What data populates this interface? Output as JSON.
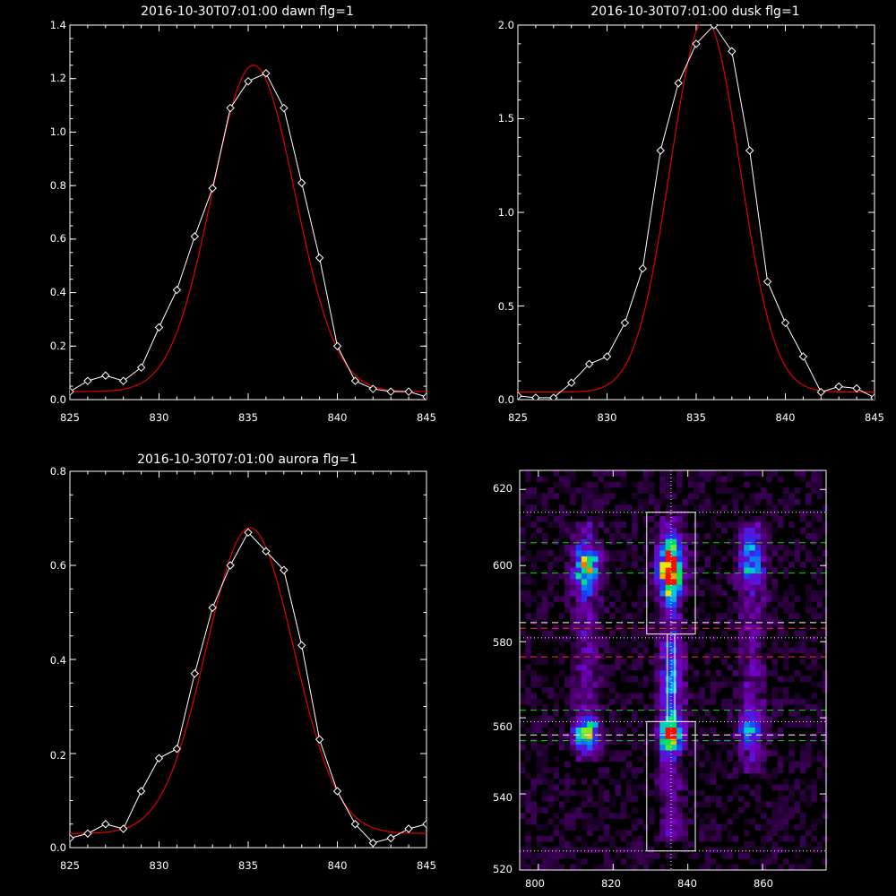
{
  "chart_data": [
    {
      "type": "line",
      "title": "2016-10-30T07:01:00 dawn flg=1",
      "xlabel": "",
      "ylabel": "",
      "xlim": [
        825,
        845
      ],
      "ylim": [
        0,
        1.4
      ],
      "xticks": [
        "825",
        "830",
        "835",
        "840",
        "845"
      ],
      "yticks": [
        "0.0",
        "0.2",
        "0.4",
        "0.6",
        "0.8",
        "1.0",
        "1.2",
        "1.4"
      ],
      "series": [
        {
          "style": "white line with diamond markers",
          "color": "#ffffff",
          "x": [
            825,
            826,
            827,
            828,
            829,
            830,
            831,
            832,
            833,
            834,
            835,
            836,
            837,
            838,
            839,
            840,
            841,
            842,
            843,
            844,
            845
          ],
          "y": [
            0.03,
            0.07,
            0.09,
            0.07,
            0.12,
            0.27,
            0.41,
            0.61,
            0.79,
            1.09,
            1.19,
            1.22,
            1.09,
            0.81,
            0.53,
            0.2,
            0.07,
            0.04,
            0.03,
            0.03,
            0.01
          ]
        },
        {
          "style": "red gaussian fit",
          "color": "#e00000",
          "gaussian": {
            "amplitude": 1.22,
            "center": 835.3,
            "sigma": 2.33,
            "baseline": 0.03
          }
        }
      ]
    },
    {
      "type": "line",
      "title": "2016-10-30T07:01:00 dusk flg=1",
      "xlabel": "",
      "ylabel": "",
      "xlim": [
        825,
        845
      ],
      "ylim": [
        0,
        2.0
      ],
      "xticks": [
        "825",
        "830",
        "835",
        "840",
        "845"
      ],
      "yticks": [
        "0.0",
        "0.5",
        "1.0",
        "1.5",
        "2.0"
      ],
      "series": [
        {
          "style": "white line with diamond markers",
          "color": "#ffffff",
          "x": [
            825,
            826,
            827,
            828,
            829,
            830,
            831,
            832,
            833,
            834,
            835,
            836,
            837,
            838,
            839,
            840,
            841,
            842,
            843,
            844,
            845
          ],
          "y": [
            0.02,
            0.01,
            0.01,
            0.09,
            0.19,
            0.23,
            0.41,
            0.7,
            1.33,
            1.69,
            1.9,
            2.0,
            1.86,
            1.33,
            0.63,
            0.41,
            0.23,
            0.04,
            0.07,
            0.06,
            0.01
          ]
        },
        {
          "style": "red gaussian fit",
          "color": "#e00000",
          "gaussian": {
            "amplitude": 1.99,
            "center": 835.5,
            "sigma": 1.95,
            "baseline": 0.04
          }
        }
      ]
    },
    {
      "type": "line",
      "title": "2016-10-30T07:01:00 aurora flg=1",
      "xlabel": "",
      "ylabel": "",
      "xlim": [
        825,
        845
      ],
      "ylim": [
        0,
        0.8
      ],
      "xticks": [
        "825",
        "830",
        "835",
        "840",
        "845"
      ],
      "yticks": [
        "0.0",
        "0.2",
        "0.4",
        "0.6",
        "0.8"
      ],
      "series": [
        {
          "style": "white line with diamond markers",
          "color": "#ffffff",
          "x": [
            825,
            826,
            827,
            828,
            829,
            830,
            831,
            832,
            833,
            834,
            835,
            836,
            837,
            838,
            839,
            840,
            841,
            842,
            843,
            844,
            845
          ],
          "y": [
            0.02,
            0.03,
            0.05,
            0.04,
            0.12,
            0.19,
            0.21,
            0.37,
            0.51,
            0.6,
            0.67,
            0.63,
            0.59,
            0.43,
            0.23,
            0.12,
            0.05,
            0.01,
            0.02,
            0.04,
            0.05
          ]
        },
        {
          "style": "red gaussian fit",
          "color": "#e00000",
          "gaussian": {
            "amplitude": 0.65,
            "center": 835.1,
            "sigma": 2.45,
            "baseline": 0.03
          }
        }
      ]
    },
    {
      "type": "heatmap",
      "title": "",
      "xlabel": "",
      "ylabel": "",
      "xlim": [
        795,
        877
      ],
      "ylim": [
        520,
        625
      ],
      "xticks": [
        "800",
        "820",
        "840",
        "860"
      ],
      "yticks": [
        "520",
        "540",
        "560",
        "580",
        "600",
        "620"
      ],
      "colormap": "black-purple-blue-cyan-green-yellow-red",
      "emission_lines": [
        {
          "x_center": 813,
          "x_width": 3.5,
          "y_min": 548,
          "y_max": 612,
          "peaks": [
            {
              "y": 599,
              "strength": 0.55,
              "spread": 6
            },
            {
              "y": 556,
              "strength": 0.5,
              "spread": 4
            }
          ]
        },
        {
          "x_center": 835.5,
          "x_width": 3.2,
          "y_min": 527,
          "y_max": 613,
          "peaks": [
            {
              "y": 599,
              "strength": 1.0,
              "spread": 7
            },
            {
              "y": 556,
              "strength": 0.75,
              "spread": 5
            },
            {
              "y": 570,
              "strength": 0.3,
              "spread": 9
            }
          ]
        },
        {
          "x_center": 857,
          "x_width": 3.5,
          "y_min": 545,
          "y_max": 612,
          "peaks": [
            {
              "y": 601,
              "strength": 0.4,
              "spread": 6
            },
            {
              "y": 557,
              "strength": 0.3,
              "spread": 4
            }
          ]
        }
      ],
      "boxes": [
        {
          "color": "#ffffff",
          "x": [
            829,
            842
          ],
          "y": [
            582,
            614
          ]
        },
        {
          "color": "#ffffff",
          "x": [
            829,
            842
          ],
          "y": [
            525,
            559
          ]
        },
        {
          "color": "#ffffff",
          "x": [
            834.5,
            836.5
          ],
          "y": [
            559,
            582
          ]
        }
      ],
      "vertical_dotted_line": {
        "color": "#ffffff",
        "x": 835.5
      },
      "horizontal_lines": [
        {
          "color": "#ffffff",
          "style": "dotted",
          "y": 614
        },
        {
          "color": "#00e000",
          "style": "dashed",
          "y": 606
        },
        {
          "color": "#00e000",
          "style": "dashed",
          "y": 598
        },
        {
          "color": "#ffffff",
          "style": "dashed",
          "y": 585
        },
        {
          "color": "#ff3030",
          "style": "dashed",
          "y": 583.5
        },
        {
          "color": "#ffffff",
          "style": "dotted",
          "y": 581
        },
        {
          "color": "#ff3030",
          "style": "dashed",
          "y": 576
        },
        {
          "color": "#00e000",
          "style": "dashed",
          "y": 562
        },
        {
          "color": "#ffffff",
          "style": "dotted",
          "y": 559
        },
        {
          "color": "#ffffff",
          "style": "dashed",
          "y": 555.5
        },
        {
          "color": "#00e000",
          "style": "dashed",
          "y": 554
        },
        {
          "color": "#ffffff",
          "style": "dotted",
          "y": 525
        }
      ]
    }
  ]
}
